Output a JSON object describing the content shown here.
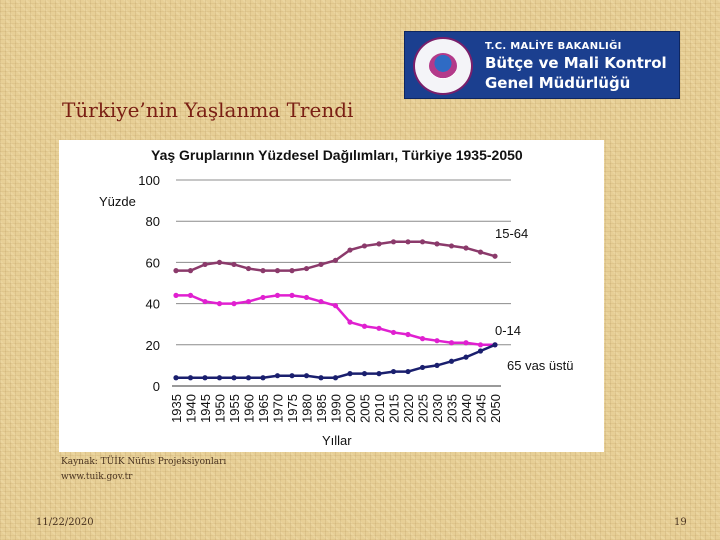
{
  "logo": {
    "line1": "T.C. MALİYE BAKANLIĞI",
    "line2": "Bütçe ve Mali Kontrol",
    "line3": "Genel Müdürlüğü"
  },
  "title": "Türkiye’nin Yaşlanma Trendi",
  "source": {
    "line1": "Kaynak: TÜİK Nüfus Projeksiyonları",
    "line2": "www.tuik.gov.tr"
  },
  "footer": {
    "date": "11/22/2020",
    "page": "19"
  },
  "chart_data": {
    "type": "line",
    "title": "Yaş Gruplarının Yüzdesel Dağılımları, Türkiye 1935-2050",
    "ylabel": "Yüzde",
    "xlabel": "Yıllar",
    "ylim": [
      0,
      100
    ],
    "yticks": [
      0,
      20,
      40,
      60,
      80,
      100
    ],
    "grid": "horizontal",
    "x": [
      1935,
      1940,
      1945,
      1950,
      1955,
      1960,
      1965,
      1970,
      1975,
      1980,
      1985,
      1990,
      2000,
      2005,
      2010,
      2015,
      2020,
      2025,
      2030,
      2035,
      2040,
      2045,
      2050
    ],
    "series": [
      {
        "name": "15-64",
        "color": "#8b3a6b",
        "values": [
          56,
          56,
          59,
          60,
          59,
          57,
          56,
          56,
          56,
          57,
          59,
          61,
          66,
          68,
          69,
          70,
          70,
          70,
          69,
          68,
          67,
          65,
          63
        ]
      },
      {
        "name": "0-14",
        "color": "#e020d0",
        "values": [
          44,
          44,
          41,
          40,
          40,
          41,
          43,
          44,
          44,
          43,
          41,
          39,
          31,
          29,
          28,
          26,
          25,
          23,
          22,
          21,
          21,
          20,
          20
        ]
      },
      {
        "name": "65 vas üstü",
        "color": "#1a1f6e",
        "values": [
          4,
          4,
          4,
          4,
          4,
          4,
          4,
          5,
          5,
          5,
          4,
          4,
          6,
          6,
          6,
          7,
          7,
          9,
          10,
          12,
          14,
          17,
          20
        ]
      }
    ]
  }
}
